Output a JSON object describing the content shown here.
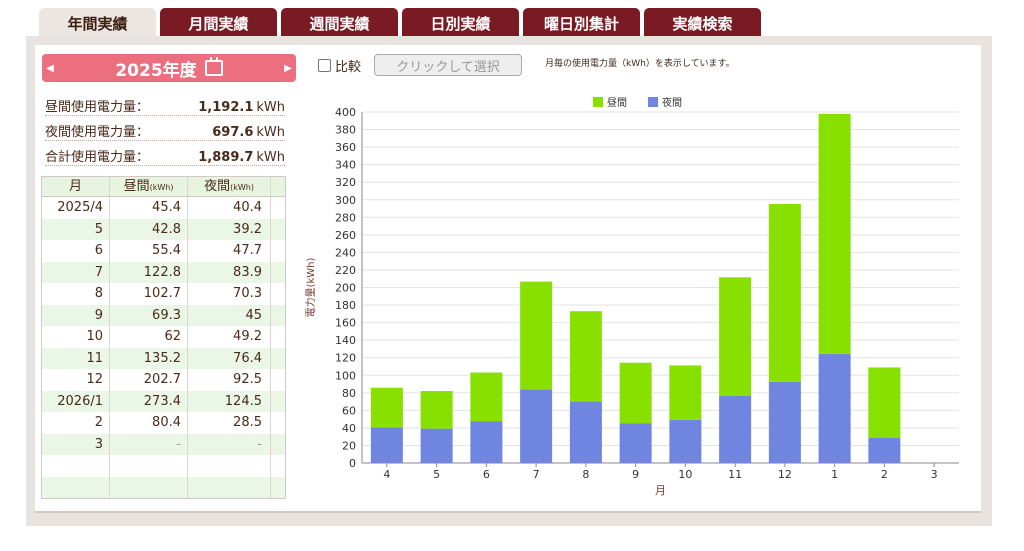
{
  "tabs": [
    "年間実績",
    "月間実績",
    "週間実績",
    "日別実績",
    "曜日別集計",
    "実績検索"
  ],
  "active_tab": 0,
  "year_selector": {
    "label": "2025年度",
    "prev": "◀",
    "next": "▶"
  },
  "summary": [
    {
      "label": "昼間使用電力量：",
      "value": "1,192.1",
      "unit": "kWh"
    },
    {
      "label": "夜間使用電力量：",
      "value": "697.6",
      "unit": "kWh"
    },
    {
      "label": "合計使用電力量：",
      "value": "1,889.7",
      "unit": "kWh"
    }
  ],
  "table": {
    "headers": {
      "month": "月",
      "day": "昼間",
      "day_unit": "(kWh)",
      "night": "夜間",
      "night_unit": "(kWh)"
    },
    "rows": [
      [
        "2025/4",
        "45.4",
        "40.4"
      ],
      [
        "5",
        "42.8",
        "39.2"
      ],
      [
        "6",
        "55.4",
        "47.7"
      ],
      [
        "7",
        "122.8",
        "83.9"
      ],
      [
        "8",
        "102.7",
        "70.3"
      ],
      [
        "9",
        "69.3",
        "45"
      ],
      [
        "10",
        "62",
        "49.2"
      ],
      [
        "11",
        "135.2",
        "76.4"
      ],
      [
        "12",
        "202.7",
        "92.5"
      ],
      [
        "2026/1",
        "273.4",
        "124.5"
      ],
      [
        "2",
        "80.4",
        "28.5"
      ],
      [
        "3",
        "-",
        "-"
      ],
      [
        "",
        "",
        ""
      ],
      [
        "",
        "",
        ""
      ]
    ]
  },
  "compare": {
    "label": "比較",
    "checked": false
  },
  "select_button": "クリックして選択",
  "note": "月毎の使用電力量（kWh）を表示しています。",
  "colors": {
    "day": "#88e000",
    "night": "#6f85e0",
    "tab": "#7a1b23",
    "year_bar": "#ec6f80"
  },
  "chart_data": {
    "type": "bar",
    "stacked": true,
    "categories": [
      "4",
      "5",
      "6",
      "7",
      "8",
      "9",
      "10",
      "11",
      "12",
      "1",
      "2",
      "3"
    ],
    "series": [
      {
        "name": "夜間",
        "values": [
          40.4,
          39.2,
          47.7,
          83.9,
          70.3,
          45,
          49.2,
          76.4,
          92.5,
          124.5,
          28.5,
          0
        ]
      },
      {
        "name": "昼間",
        "values": [
          45.4,
          42.8,
          55.4,
          122.8,
          102.7,
          69.3,
          62,
          135.2,
          202.7,
          273.4,
          80.4,
          0
        ]
      }
    ],
    "legend_order": [
      "昼間",
      "夜間"
    ],
    "xlabel": "月",
    "ylabel": "電力量(kWh)",
    "ylim": [
      0,
      400
    ],
    "ytick_step": 20,
    "grid": true,
    "legend": "top-center"
  }
}
